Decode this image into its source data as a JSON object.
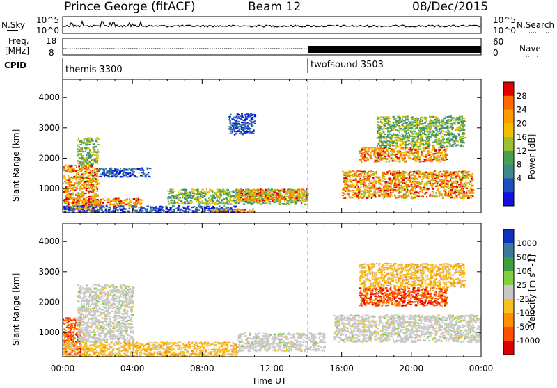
{
  "header": {
    "station": "Prince George (fitACF)",
    "beam": "Beam 12",
    "date": "08/Dec/2015"
  },
  "strips": {
    "nsky_label": "N.Sky",
    "nsearch_label": "N.Search",
    "nsky_ticks": [
      "10^5",
      "10^0"
    ],
    "nsearch_ticks": [
      "10^5",
      "10^0"
    ],
    "freq_label_1": "Freq.",
    "freq_label_2": "[MHz]",
    "freq_ticks": [
      "18",
      "8"
    ],
    "nave_label": "Nave",
    "nave_ticks": [
      "60",
      "0"
    ],
    "cpid_label": "CPID",
    "cpid_segments": [
      {
        "name": "themis 3300",
        "start_hour": 0,
        "end_hour": 14
      },
      {
        "name": "twofsound 3503",
        "start_hour": 14,
        "end_hour": 24
      }
    ]
  },
  "chart_data": [
    {
      "type": "heatmap",
      "panel": "power",
      "ylabel": "Slant Range [km]",
      "yticks": [
        1000,
        2000,
        3000,
        4000
      ],
      "ylim": [
        200,
        4600
      ],
      "colorbar_label": "Power [dB]",
      "colorbar_ticks": [
        "28",
        "24",
        "20",
        "16",
        "12",
        "8",
        "4"
      ],
      "colorbar_colors": [
        "#e00000",
        "#ff6a00",
        "#ff9c00",
        "#f0c000",
        "#9cc030",
        "#4aa050",
        "#3a8a8a",
        "#2050c0",
        "#1010e0"
      ],
      "cutoff_line": true,
      "features": [
        {
          "name": "near-range band 00-02 UT",
          "x": [
            0,
            2
          ],
          "y": [
            200,
            1800
          ],
          "level": "high"
        },
        {
          "name": "patch 01 UT",
          "x": [
            0.8,
            2
          ],
          "y": [
            1800,
            2700
          ],
          "level": "mid"
        },
        {
          "name": "enhanced 00-04 UT",
          "x": [
            0.5,
            4.5
          ],
          "y": [
            400,
            700
          ],
          "level": "high"
        },
        {
          "name": "near band 00-10 UT",
          "x": [
            0,
            10
          ],
          "y": [
            200,
            450
          ],
          "level": "low"
        },
        {
          "name": "ground scatter 06-14 UT",
          "x": [
            6,
            14
          ],
          "y": [
            500,
            1000
          ],
          "level": "mid"
        },
        {
          "name": "strong 08-11 UT",
          "x": [
            8.5,
            11
          ],
          "y": [
            200,
            350
          ],
          "level": "high"
        },
        {
          "name": "broad 10-14 UT",
          "x": [
            10,
            14
          ],
          "y": [
            600,
            1000
          ],
          "level": "high"
        },
        {
          "name": "streaks 02-05 UT",
          "x": [
            2,
            5
          ],
          "y": [
            1400,
            1700
          ],
          "level": "low"
        },
        {
          "name": "streaks 09-11 UT",
          "x": [
            9.5,
            11
          ],
          "y": [
            2800,
            3500
          ],
          "level": "low"
        },
        {
          "name": "echoes 16-24 UT",
          "x": [
            16,
            23.5
          ],
          "y": [
            700,
            1600
          ],
          "level": "high"
        },
        {
          "name": "echoes 17-22 UT",
          "x": [
            17,
            22
          ],
          "y": [
            1900,
            2400
          ],
          "level": "high"
        },
        {
          "name": "scattered 18-23 UT",
          "x": [
            18,
            23
          ],
          "y": [
            2400,
            3400
          ],
          "level": "mid"
        }
      ]
    },
    {
      "type": "heatmap",
      "panel": "velocity",
      "xlabel": "Time UT",
      "ylabel": "Slant Range [km]",
      "xticks": [
        "00:00",
        "04:00",
        "08:00",
        "12:00",
        "16:00",
        "20:00",
        "00:00"
      ],
      "xlim": [
        0,
        24
      ],
      "yticks": [
        1000,
        2000,
        3000,
        4000
      ],
      "ylim": [
        200,
        4600
      ],
      "colorbar_label": "Velocity [m s^-1]",
      "colorbar_ticks": [
        "1000",
        "500",
        "100",
        "25",
        "-25",
        "-100",
        "-500",
        "-1000"
      ],
      "colorbar_colors": [
        "#1030c0",
        "#3a78a0",
        "#3aa040",
        "#80d040",
        "#c8c8c8",
        "#f5c020",
        "#ff9000",
        "#ff5000",
        "#e00000"
      ],
      "cutoff_line": true,
      "features": [
        {
          "name": "near-range 00-01 UT",
          "x": [
            0,
            1
          ],
          "y": [
            300,
            1500
          ],
          "v": "-500"
        },
        {
          "name": "grey diagonal 01-04 UT",
          "x": [
            0.8,
            4
          ],
          "y": [
            700,
            2600
          ],
          "v": "0"
        },
        {
          "name": "low band 00-10 UT",
          "x": [
            0,
            10
          ],
          "y": [
            200,
            700
          ],
          "v": "-100"
        },
        {
          "name": "grey 10-15 UT",
          "x": [
            10,
            15
          ],
          "y": [
            400,
            1000
          ],
          "v": "0"
        },
        {
          "name": "grey 16-24 UT",
          "x": [
            15.5,
            24
          ],
          "y": [
            700,
            1600
          ],
          "v": "0"
        },
        {
          "name": "red-orange 17-22 UT",
          "x": [
            17,
            22
          ],
          "y": [
            1900,
            2500
          ],
          "v": "-500"
        },
        {
          "name": "orange 17-23 UT",
          "x": [
            17,
            23
          ],
          "y": [
            2500,
            3300
          ],
          "v": "-100"
        }
      ]
    }
  ]
}
